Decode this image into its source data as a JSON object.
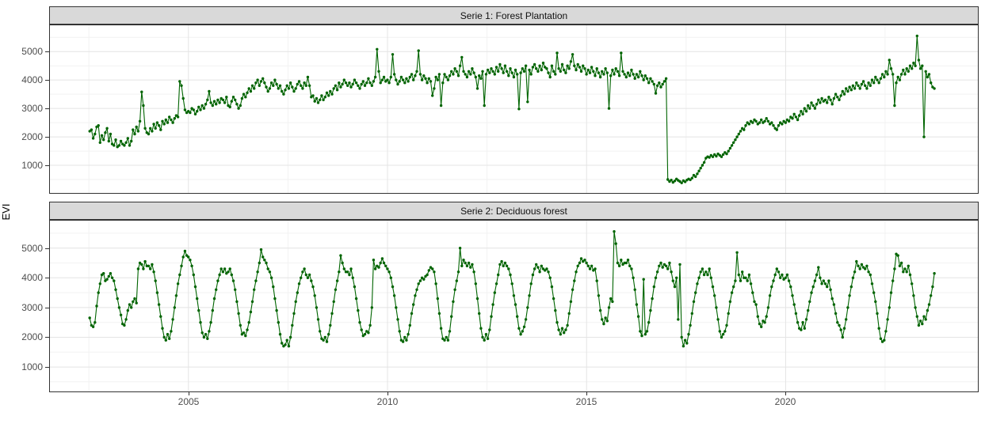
{
  "y_axis_title": "EVI",
  "colors": {
    "series": "#006400",
    "grid_major": "#E4E4E4",
    "grid_minor": "#F2F2F2",
    "panel_border": "#333333",
    "strip_fill": "#D9D9D9",
    "tick_label": "#4D4D4D",
    "background": "#FFFFFF"
  },
  "chart_data": [
    {
      "type": "line",
      "title": "Serie 1: Forest Plantation",
      "ylabel": "EVI",
      "x_domain": [
        2001.5,
        2024.85
      ],
      "y_domain": [
        0,
        5950
      ],
      "x_ticks": [
        2005,
        2010,
        2015,
        2020
      ],
      "x_tick_labels": [
        "2005",
        "2010",
        "2015",
        "2020"
      ],
      "x_minor_ticks": [
        2002.5,
        2007.5,
        2012.5,
        2017.5,
        2022.5
      ],
      "y_ticks": [
        1000,
        2000,
        3000,
        4000,
        5000
      ],
      "y_tick_labels": [
        "1000",
        "2000",
        "3000",
        "4000",
        "5000"
      ],
      "y_minor_ticks": [
        500,
        1500,
        2500,
        3500,
        4500,
        5500
      ],
      "grid": true,
      "x_start": 2002.52,
      "x_step": 0.043478,
      "values": [
        2200,
        2250,
        1950,
        2100,
        2350,
        2400,
        1800,
        2050,
        1900,
        2150,
        2300,
        1850,
        2100,
        1750,
        1700,
        1900,
        1650,
        1700,
        1850,
        1750,
        1700,
        1800,
        1950,
        1700,
        1850,
        2250,
        2100,
        2350,
        2200,
        2550,
        3580,
        3100,
        2300,
        2150,
        2100,
        2300,
        2200,
        2450,
        2300,
        2500,
        2400,
        2250,
        2550,
        2450,
        2600,
        2500,
        2700,
        2600,
        2500,
        2650,
        2750,
        2700,
        3950,
        3800,
        3350,
        2950,
        2850,
        2900,
        2850,
        3000,
        2950,
        2800,
        2900,
        3050,
        2950,
        3100,
        3000,
        3150,
        3300,
        3600,
        3200,
        3100,
        3250,
        3150,
        3300,
        3200,
        3350,
        3300,
        3200,
        3400,
        3100,
        3050,
        3250,
        3400,
        3300,
        3150,
        3000,
        3100,
        3350,
        3500,
        3400,
        3550,
        3700,
        3600,
        3800,
        3700,
        3900,
        4000,
        3800,
        3950,
        4050,
        3900,
        3750,
        3600,
        3700,
        3900,
        3800,
        4000,
        3850,
        3700,
        3800,
        3600,
        3500,
        3650,
        3800,
        3700,
        3900,
        3750,
        3600,
        3700,
        3850,
        3950,
        3800,
        3700,
        3900,
        3800,
        4100,
        3800,
        3400,
        3450,
        3250,
        3350,
        3200,
        3300,
        3450,
        3300,
        3400,
        3550,
        3450,
        3600,
        3500,
        3700,
        3800,
        3650,
        3900,
        3750,
        3850,
        4000,
        3900,
        3800,
        3900,
        3750,
        3850,
        4000,
        3900,
        3800,
        3700,
        3850,
        3950,
        3800,
        3900,
        4050,
        3900,
        3800,
        3950,
        4100,
        5080,
        4300,
        3900,
        4000,
        4100,
        3950,
        4000,
        3900,
        4100,
        4900,
        4200,
        4000,
        3850,
        3950,
        4100,
        4000,
        3900,
        4050,
        3950,
        4100,
        4200,
        4000,
        4150,
        4300,
        5030,
        4200,
        4000,
        4150,
        4050,
        3900,
        4050,
        3950,
        3450,
        3700,
        4100,
        4000,
        4200,
        3100,
        3900,
        4200,
        4100,
        4000,
        4150,
        4300,
        4200,
        4400,
        4300,
        4150,
        4500,
        4800,
        4300,
        4200,
        4100,
        4300,
        4200,
        4400,
        4250,
        4100,
        3700,
        4150,
        4050,
        4300,
        3100,
        4200,
        4350,
        4250,
        4400,
        4300,
        4200,
        4450,
        4300,
        4550,
        4400,
        4250,
        4500,
        4300,
        4150,
        4400,
        4250,
        4100,
        4350,
        4200,
        2980,
        4250,
        4400,
        4300,
        4500,
        3230,
        4350,
        4200,
        4450,
        4550,
        4400,
        4300,
        4500,
        4350,
        4600,
        4450,
        4400,
        4250,
        4100,
        4500,
        4300,
        4200,
        4950,
        4400,
        4300,
        4550,
        4350,
        4250,
        4500,
        4400,
        4650,
        4900,
        4500,
        4350,
        4550,
        4450,
        4300,
        4500,
        4400,
        4200,
        4350,
        4250,
        4450,
        4300,
        4150,
        4400,
        4250,
        4100,
        4300,
        4200,
        4400,
        4250,
        3000,
        4150,
        4350,
        4200,
        4400,
        4300,
        4150,
        4950,
        4300,
        4200,
        4100,
        4250,
        4150,
        4350,
        4200,
        4050,
        4200,
        4100,
        4300,
        4150,
        4000,
        4150,
        4050,
        3900,
        4050,
        3950,
        3850,
        3530,
        3800,
        3900,
        3750,
        3850,
        3950,
        4050,
        500,
        430,
        480,
        400,
        450,
        520,
        470,
        430,
        380,
        460,
        420,
        480,
        520,
        490,
        550,
        650,
        600,
        700,
        800,
        900,
        1000,
        1100,
        1250,
        1300,
        1280,
        1350,
        1300,
        1380,
        1320,
        1400,
        1350,
        1300,
        1380,
        1450,
        1400,
        1500,
        1600,
        1700,
        1800,
        1900,
        2000,
        2100,
        2200,
        2300,
        2250,
        2400,
        2500,
        2450,
        2550,
        2500,
        2600,
        2550,
        2450,
        2500,
        2600,
        2500,
        2550,
        2650,
        2550,
        2450,
        2500,
        2400,
        2300,
        2250,
        2400,
        2500,
        2450,
        2550,
        2500,
        2600,
        2550,
        2700,
        2650,
        2800,
        2700,
        2600,
        2750,
        2900,
        2800,
        3000,
        2900,
        3100,
        3000,
        3200,
        3100,
        3000,
        3150,
        3300,
        3200,
        3350,
        3250,
        3300,
        3200,
        3400,
        3300,
        3150,
        3350,
        3500,
        3400,
        3300,
        3450,
        3600,
        3500,
        3700,
        3600,
        3750,
        3650,
        3800,
        3700,
        3900,
        3800,
        3700,
        3850,
        3950,
        3800,
        3700,
        3900,
        3800,
        4000,
        3900,
        4100,
        4000,
        3900,
        4050,
        4200,
        4100,
        4300,
        4200,
        4700,
        4400,
        4200,
        3100,
        3900,
        4100,
        4000,
        4200,
        4350,
        4200,
        4400,
        4300,
        4500,
        4400,
        4600,
        4500,
        5550,
        4700,
        4400,
        4500,
        2000,
        4300,
        4100,
        4200,
        3900,
        3750,
        3700
      ]
    },
    {
      "type": "line",
      "title": "Serie 2: Deciduous forest",
      "ylabel": "EVI",
      "x_domain": [
        2001.5,
        2024.85
      ],
      "y_domain": [
        150,
        5950
      ],
      "x_ticks": [
        2005,
        2010,
        2015,
        2020
      ],
      "x_tick_labels": [
        "2005",
        "2010",
        "2015",
        "2020"
      ],
      "x_minor_ticks": [
        2002.5,
        2007.5,
        2012.5,
        2017.5,
        2022.5
      ],
      "y_ticks": [
        1000,
        2000,
        3000,
        4000,
        5000
      ],
      "y_tick_labels": [
        "1000",
        "2000",
        "3000",
        "4000",
        "5000"
      ],
      "y_minor_ticks": [
        500,
        1500,
        2500,
        3500,
        4500,
        5500
      ],
      "grid": true,
      "x_start": 2002.52,
      "x_step": 0.043478,
      "values": [
        2650,
        2400,
        2350,
        2500,
        3050,
        3500,
        3800,
        4100,
        4150,
        3900,
        3950,
        4050,
        4150,
        4000,
        3900,
        3600,
        3300,
        3000,
        2750,
        2450,
        2400,
        2600,
        2900,
        3100,
        3000,
        3200,
        3300,
        3150,
        4300,
        4500,
        4450,
        4300,
        4550,
        4400,
        4400,
        4300,
        4450,
        4200,
        3900,
        3500,
        3100,
        2700,
        2300,
        2000,
        1900,
        2100,
        1950,
        2200,
        2600,
        3000,
        3400,
        3800,
        4100,
        4400,
        4700,
        4900,
        4750,
        4700,
        4600,
        4400,
        4100,
        3700,
        3300,
        2900,
        2500,
        2150,
        2000,
        2100,
        1950,
        2200,
        2500,
        2900,
        3300,
        3600,
        3900,
        4100,
        4300,
        4200,
        4300,
        4150,
        4200,
        4300,
        4100,
        3900,
        3600,
        3200,
        2800,
        2400,
        2100,
        2150,
        2050,
        2250,
        2500,
        2850,
        3200,
        3600,
        3900,
        4200,
        4500,
        4950,
        4700,
        4600,
        4500,
        4300,
        4200,
        4000,
        3700,
        3300,
        2900,
        2500,
        2100,
        1800,
        1700,
        1750,
        1900,
        1700,
        2000,
        2400,
        2800,
        3200,
        3500,
        3800,
        4000,
        4200,
        4300,
        4100,
        4000,
        4100,
        3900,
        3700,
        3400,
        3000,
        2600,
        2200,
        1950,
        1900,
        2000,
        1850,
        2100,
        2400,
        2800,
        3200,
        3600,
        3900,
        4200,
        4750,
        4500,
        4300,
        4200,
        4200,
        4100,
        4300,
        4000,
        3700,
        3300,
        2900,
        2500,
        2250,
        2050,
        2100,
        2200,
        2150,
        2400,
        3000,
        4600,
        4300,
        4400,
        4350,
        4500,
        4650,
        4500,
        4400,
        4300,
        4200,
        4000,
        3700,
        3400,
        3000,
        2600,
        2200,
        1900,
        1850,
        2000,
        1900,
        2100,
        2400,
        2800,
        3100,
        3400,
        3600,
        3800,
        3900,
        4000,
        3950,
        4050,
        4100,
        4250,
        4350,
        4300,
        4200,
        3800,
        3300,
        2800,
        2300,
        1950,
        1900,
        2000,
        1900,
        2200,
        2700,
        3200,
        3600,
        3900,
        4200,
        5000,
        4400,
        4600,
        4500,
        4400,
        4500,
        4350,
        4450,
        4200,
        3800,
        3300,
        2800,
        2300,
        2000,
        1900,
        2100,
        1950,
        2250,
        2700,
        3100,
        3500,
        3800,
        4100,
        4450,
        4550,
        4400,
        4500,
        4400,
        4300,
        4100,
        3800,
        3400,
        3100,
        2700,
        2300,
        2100,
        2200,
        2350,
        2600,
        3000,
        3400,
        3800,
        4100,
        4300,
        4450,
        4350,
        4200,
        4400,
        4300,
        4250,
        4300,
        4200,
        4000,
        3700,
        3300,
        2900,
        2500,
        2250,
        2100,
        2300,
        2150,
        2250,
        2400,
        2800,
        3200,
        3600,
        3900,
        4200,
        4400,
        4500,
        4650,
        4550,
        4600,
        4500,
        4400,
        4300,
        4400,
        4250,
        4300,
        3900,
        3400,
        2900,
        2600,
        2450,
        2650,
        2550,
        3000,
        3300,
        3200,
        5560,
        5150,
        4500,
        4400,
        4600,
        4450,
        4500,
        4500,
        4600,
        4400,
        4300,
        4000,
        3600,
        3100,
        2700,
        2200,
        2050,
        3950,
        2100,
        2200,
        2500,
        2900,
        3300,
        3700,
        4000,
        4200,
        4400,
        4500,
        4350,
        4450,
        4400,
        4300,
        4500,
        4200,
        3900,
        3700,
        4000,
        2600,
        4450,
        2000,
        1700,
        1900,
        1800,
        2100,
        2400,
        2800,
        3200,
        3500,
        3800,
        4000,
        4200,
        4300,
        4100,
        4200,
        4100,
        4300,
        4000,
        3700,
        3400,
        3000,
        2600,
        2200,
        2000,
        2100,
        2200,
        2400,
        2800,
        3200,
        3500,
        3700,
        3900,
        4850,
        4100,
        3900,
        4200,
        4000,
        4000,
        3900,
        4100,
        3800,
        3500,
        3200,
        3100,
        2700,
        2450,
        2350,
        2550,
        2500,
        2700,
        3000,
        3400,
        3700,
        3900,
        4100,
        4300,
        4200,
        4000,
        4100,
        3950,
        4000,
        4100,
        3900,
        3700,
        3400,
        3100,
        2800,
        2500,
        2300,
        2250,
        2500,
        2300,
        2600,
        2900,
        3200,
        3500,
        3700,
        3900,
        4100,
        4350,
        4000,
        3800,
        3900,
        3800,
        3700,
        3900,
        3600,
        3300,
        3100,
        2800,
        2500,
        2400,
        2250,
        2000,
        2300,
        2600,
        3000,
        3400,
        3700,
        4000,
        4200,
        4550,
        4400,
        4300,
        4450,
        4350,
        4300,
        4400,
        4200,
        4100,
        3800,
        3500,
        3200,
        2800,
        2300,
        1950,
        1850,
        1900,
        2200,
        2600,
        3000,
        3500,
        3900,
        4300,
        4800,
        4750,
        4400,
        4500,
        4200,
        4300,
        4200,
        4400,
        4100,
        3800,
        3400,
        3000,
        2700,
        2400,
        2550,
        2450,
        2700,
        2600,
        2900,
        3100,
        3400,
        3700,
        4150
      ]
    }
  ]
}
